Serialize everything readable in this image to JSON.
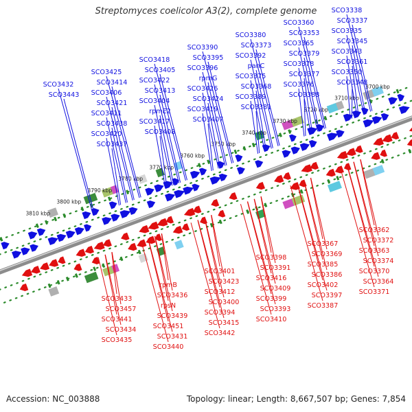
{
  "title": "Streptomyces coelicolor A3(2), complete genome",
  "footer": {
    "accession": "Accession: NC_003888",
    "stats": "Topology: linear; Length: 8,667,507 bp; Genes: 7,854"
  },
  "colors": {
    "forward": "#1010e0",
    "reverse": "#e01010",
    "backbone": "#8c8c8c",
    "dots": "#2a8a2a"
  },
  "scale_labels": [
    "3700 kbp",
    "3710 kbp",
    "3720 kbp",
    "3730 kbp",
    "3740 kbp",
    "3750 kbp",
    "3760 kbp",
    "3770 kbp",
    "3780 kbp",
    "3790 kbp",
    "3800 kbp",
    "3810 kbp"
  ],
  "upper_labels": [
    "SCO3338",
    "SCO3337",
    "SCO3335",
    "SCO3345",
    "SCO3343",
    "SCO3361",
    "SCO3350",
    "SCO3348",
    "SCO3360",
    "SCO3353",
    "SCO3365",
    "SCO3379",
    "SCO3378",
    "SCO3377",
    "SCO3376",
    "SCO3388",
    "SCO3380",
    "SCO3373",
    "SCO3392",
    "panC",
    "SCO3375",
    "SCO3368",
    "SCO3389",
    "SCO3381",
    "SCO3390",
    "SCO3395",
    "SCO3396",
    "rpmG",
    "SCO3426",
    "SCO3424",
    "SCO3419",
    "SCO3407",
    "SCO3418",
    "SCO3405",
    "SCO3422",
    "SCO3413",
    "SCO3404",
    "rpmE2",
    "SCO3417",
    "SCO3408",
    "SCO3425",
    "SCO3414",
    "SCO3406",
    "SCO3421",
    "SCO3411",
    "SCO3438",
    "SCO3420",
    "SCO3437",
    "SCO3432",
    "SCO3443"
  ],
  "lower_labels": [
    "SCO3362",
    "SCO3372",
    "SCO3363",
    "SCO3374",
    "SCO3370",
    "SCO3364",
    "SCO3371",
    "SCO3367",
    "SCO3369",
    "SCO3385",
    "SCO3386",
    "SCO3402",
    "SCO3397",
    "SCO3387",
    "SCO3398",
    "SCO3391",
    "SCO3416",
    "SCO3409",
    "SCO3399",
    "SCO3393",
    "SCO3410",
    "SCO3401",
    "SCO3423",
    "SCO3412",
    "SCO3400",
    "SCO3394",
    "SCO3415",
    "SCO3442",
    "rpmB",
    "SCO3436",
    "rpsN",
    "SCO3439",
    "SCO3451",
    "SCO3431",
    "SCO3440",
    "SCO3433",
    "SCO3457",
    "SCO3441",
    "SCO3434",
    "SCO3435"
  ]
}
